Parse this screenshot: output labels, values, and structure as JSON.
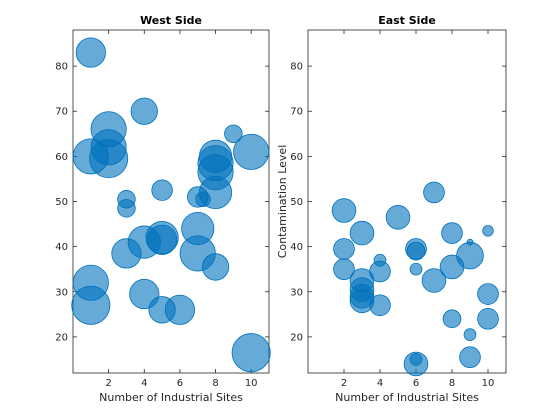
{
  "colors": {
    "bubble_fill": "#0072BD",
    "bubble_edge": "#0072BD",
    "axis": "#262626"
  },
  "chart_data": [
    {
      "type": "scatter",
      "title": "West Side",
      "xlabel": "Number of Industrial Sites",
      "ylabel": "",
      "xlim": [
        0,
        11
      ],
      "ylim": [
        12,
        88
      ],
      "xticks": [
        2,
        4,
        6,
        8,
        10
      ],
      "yticks": [
        20,
        30,
        40,
        50,
        60,
        70,
        80
      ],
      "grid": false,
      "points": [
        {
          "x": 1,
          "y": 83,
          "size": 5
        },
        {
          "x": 1,
          "y": 60,
          "size": 6
        },
        {
          "x": 1,
          "y": 32,
          "size": 6
        },
        {
          "x": 1,
          "y": 27,
          "size": 6.5
        },
        {
          "x": 2,
          "y": 66,
          "size": 6
        },
        {
          "x": 2,
          "y": 62,
          "size": 6
        },
        {
          "x": 2,
          "y": 59.5,
          "size": 6.5
        },
        {
          "x": 3,
          "y": 50.5,
          "size": 3
        },
        {
          "x": 3,
          "y": 48.5,
          "size": 3
        },
        {
          "x": 3,
          "y": 38.5,
          "size": 5
        },
        {
          "x": 4,
          "y": 70,
          "size": 4.5
        },
        {
          "x": 4,
          "y": 41,
          "size": 5.5
        },
        {
          "x": 4,
          "y": 29.5,
          "size": 5
        },
        {
          "x": 5,
          "y": 52.5,
          "size": 3.5
        },
        {
          "x": 5,
          "y": 42,
          "size": 5.5
        },
        {
          "x": 5,
          "y": 41.5,
          "size": 5
        },
        {
          "x": 5,
          "y": 26,
          "size": 4.5
        },
        {
          "x": 6,
          "y": 26,
          "size": 5
        },
        {
          "x": 7,
          "y": 51,
          "size": 3.5
        },
        {
          "x": 7,
          "y": 44,
          "size": 5.5
        },
        {
          "x": 7,
          "y": 38.5,
          "size": 6
        },
        {
          "x": 7.3,
          "y": 50.5,
          "size": 2.5
        },
        {
          "x": 8,
          "y": 60,
          "size": 5.5
        },
        {
          "x": 8,
          "y": 58.5,
          "size": 6
        },
        {
          "x": 8,
          "y": 56.5,
          "size": 6
        },
        {
          "x": 8,
          "y": 52,
          "size": 5.5
        },
        {
          "x": 8,
          "y": 35.5,
          "size": 4.5
        },
        {
          "x": 9,
          "y": 65,
          "size": 3
        },
        {
          "x": 10,
          "y": 61,
          "size": 6
        },
        {
          "x": 10,
          "y": 16.5,
          "size": 6.5
        }
      ]
    },
    {
      "type": "scatter",
      "title": "East Side",
      "xlabel": "Number of Industrial Sites",
      "ylabel": "Contamination Level",
      "xlim": [
        0,
        11
      ],
      "ylim": [
        12,
        88
      ],
      "xticks": [
        2,
        4,
        6,
        8,
        10
      ],
      "yticks": [
        20,
        30,
        40,
        50,
        60,
        70,
        80
      ],
      "grid": false,
      "points": [
        {
          "x": 2,
          "y": 48,
          "size": 4
        },
        {
          "x": 2,
          "y": 39.5,
          "size": 3.5
        },
        {
          "x": 2,
          "y": 35,
          "size": 3.5
        },
        {
          "x": 3,
          "y": 43,
          "size": 4
        },
        {
          "x": 3,
          "y": 32.5,
          "size": 4
        },
        {
          "x": 3,
          "y": 30.5,
          "size": 4
        },
        {
          "x": 3,
          "y": 29,
          "size": 4
        },
        {
          "x": 3,
          "y": 28,
          "size": 4
        },
        {
          "x": 4,
          "y": 37,
          "size": 2
        },
        {
          "x": 4,
          "y": 34.5,
          "size": 3.5
        },
        {
          "x": 4,
          "y": 27,
          "size": 3.5
        },
        {
          "x": 5,
          "y": 46.5,
          "size": 4
        },
        {
          "x": 6,
          "y": 39.5,
          "size": 3.5
        },
        {
          "x": 6,
          "y": 39,
          "size": 3
        },
        {
          "x": 6,
          "y": 35,
          "size": 2
        },
        {
          "x": 6,
          "y": 15,
          "size": 2
        },
        {
          "x": 6,
          "y": 14,
          "size": 4
        },
        {
          "x": 7,
          "y": 52,
          "size": 3.5
        },
        {
          "x": 7,
          "y": 32.5,
          "size": 4
        },
        {
          "x": 8,
          "y": 43,
          "size": 3.5
        },
        {
          "x": 8,
          "y": 35.5,
          "size": 4
        },
        {
          "x": 8,
          "y": 24,
          "size": 3
        },
        {
          "x": 9,
          "y": 41,
          "size": 1
        },
        {
          "x": 9,
          "y": 38,
          "size": 4.5
        },
        {
          "x": 9,
          "y": 20.5,
          "size": 2
        },
        {
          "x": 9,
          "y": 15.5,
          "size": 3.5
        },
        {
          "x": 10,
          "y": 43.5,
          "size": 1.8
        },
        {
          "x": 10,
          "y": 29.5,
          "size": 3.5
        },
        {
          "x": 10,
          "y": 24,
          "size": 3.5
        }
      ]
    }
  ]
}
